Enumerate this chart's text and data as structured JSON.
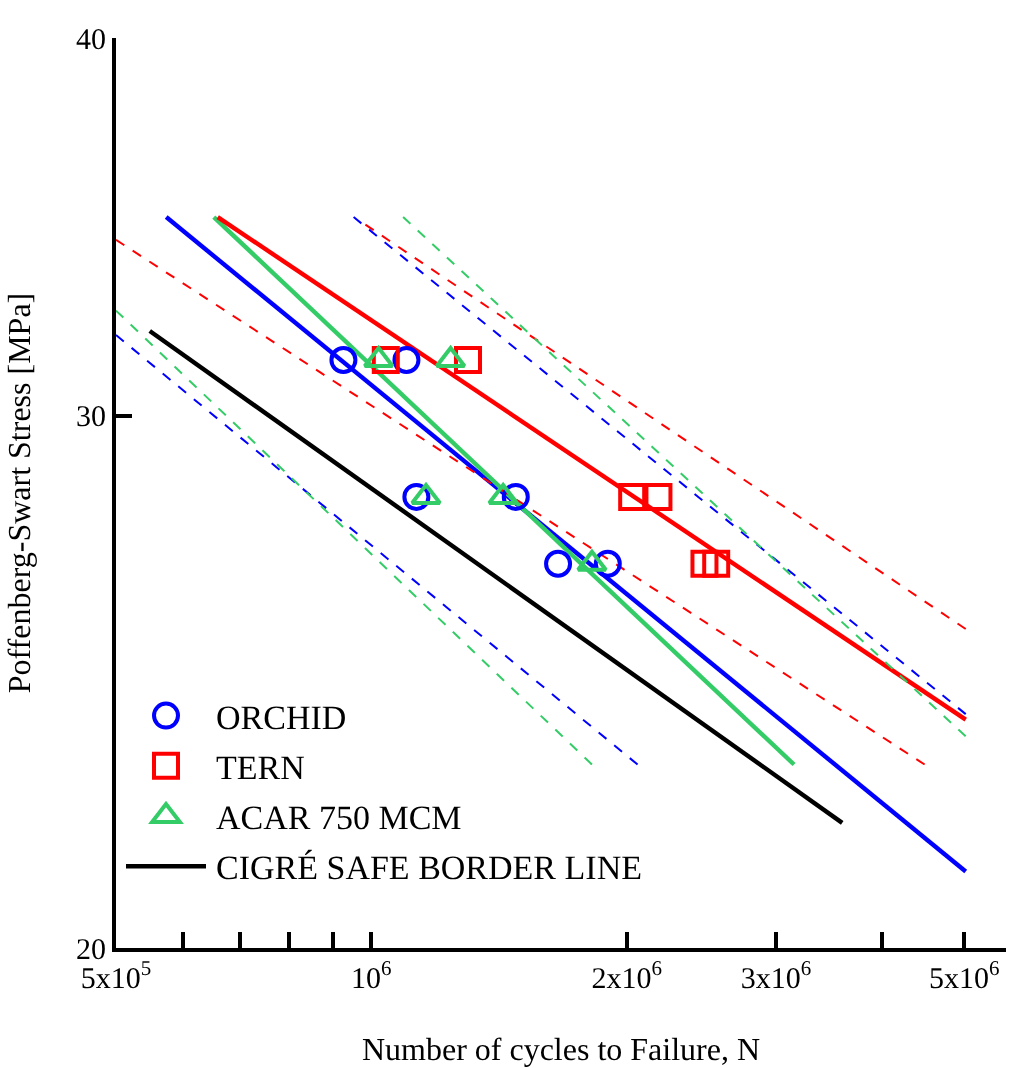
{
  "chart_data": {
    "type": "scatter",
    "xlabel": "Number of cycles to Failure, N",
    "ylabel": "Poffenberg-Swart Stress [MPa]",
    "log": "xy",
    "grid": false,
    "legend": "bottom left",
    "xlim": [
      500000,
      5600000
    ],
    "xticks": [
      {
        "value": 500000,
        "label": "5x10$^{5}$"
      },
      {
        "value": 600000,
        "label": null
      },
      {
        "value": 700000,
        "label": null
      },
      {
        "value": 800000,
        "label": null
      },
      {
        "value": 900000,
        "label": null
      },
      {
        "value": 1000000,
        "label": "10$^{6}$"
      },
      {
        "value": 2000000,
        "label": "2x10$^{6}$"
      },
      {
        "value": 3000000,
        "label": "3x10$^{6}$"
      },
      {
        "value": 4000000,
        "label": null
      },
      {
        "value": 5000000,
        "label": "5x10$^{6}$"
      }
    ],
    "ylim": [
      20,
      40
    ],
    "yticks": [
      20,
      30,
      40
    ],
    "series": [
      {
        "name": "ORCHID",
        "marker": "circle",
        "color": "#0000ff",
        "x": [
          927000,
          1100000,
          1130000,
          1480000,
          1660000,
          1900000
        ],
        "values": [
          31.3,
          31.3,
          28.2,
          28.2,
          26.8,
          26.8
        ]
      },
      {
        "name": "TERN",
        "marker": "square",
        "color": "#ff0000",
        "x": [
          1040000,
          1300000,
          2030000,
          2180000,
          2470000,
          2550000
        ],
        "values": [
          31.3,
          31.3,
          28.2,
          28.2,
          26.8,
          26.8
        ]
      },
      {
        "name": "ACAR 750 MCM",
        "marker": "triangle",
        "color": "#33cc66",
        "x": [
          1020000,
          1240000,
          1160000,
          1430000,
          1820000
        ],
        "values": [
          31.3,
          31.3,
          28.2,
          28.2,
          26.8
        ]
      },
      {
        "name": "CIGRÉ SAFE BORDER LINE",
        "type": "line",
        "line_style": "solid",
        "color": "#000000",
        "x": [
          548000,
          3590000
        ],
        "values": [
          32.0,
          22.0
        ]
      },
      {
        "type": "line",
        "line_style": "solid",
        "color": "#0000ff",
        "x": [
          573000,
          5020000
        ],
        "values": [
          34.9,
          21.2
        ]
      },
      {
        "type": "line",
        "line_style": "solid",
        "color": "#33cc66",
        "x": [
          652000,
          3150000
        ],
        "values": [
          34.9,
          23.0
        ]
      },
      {
        "type": "line",
        "line_style": "solid",
        "color": "#ff0000",
        "x": [
          659000,
          5020000
        ],
        "values": [
          34.9,
          23.8
        ]
      },
      {
        "type": "line",
        "line_style": "dashed",
        "color": "#ff0000",
        "x": [
          984000,
          5020000
        ],
        "values": [
          34.7,
          25.5
        ]
      },
      {
        "type": "line",
        "line_style": "dashed",
        "color": "#ff0000",
        "x": [
          500000,
          4490000
        ],
        "values": [
          34.3,
          23.0
        ]
      },
      {
        "type": "line",
        "line_style": "dashed",
        "color": "#0000ff",
        "x": [
          953000,
          5020000
        ],
        "values": [
          34.9,
          23.9
        ]
      },
      {
        "type": "line",
        "line_style": "dashed",
        "color": "#0000ff",
        "x": [
          500000,
          2060000
        ],
        "values": [
          31.9,
          23.0
        ]
      },
      {
        "type": "line",
        "line_style": "dashed",
        "color": "#33cc66",
        "x": [
          1090000,
          5020000
        ],
        "values": [
          34.9,
          23.5
        ]
      },
      {
        "type": "line",
        "line_style": "dashed",
        "color": "#33cc66",
        "x": [
          500000,
          1820000
        ],
        "values": [
          32.5,
          23.0
        ]
      }
    ]
  }
}
